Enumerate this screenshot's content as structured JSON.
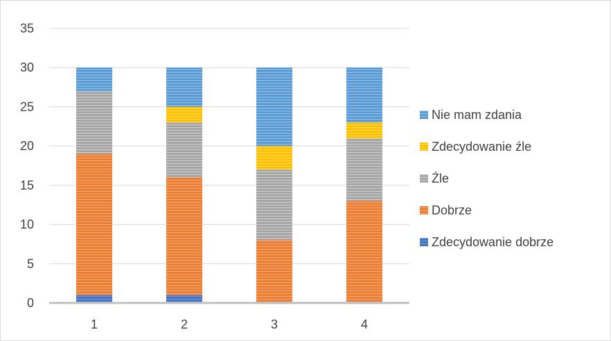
{
  "chart_data": {
    "type": "bar",
    "stacked": true,
    "categories": [
      "1",
      "2",
      "3",
      "4"
    ],
    "series": [
      {
        "name": "Zdecydowanie dobrze",
        "values": [
          1,
          1,
          0,
          0
        ],
        "color": "#4472c4"
      },
      {
        "name": "Dobrze",
        "values": [
          18,
          15,
          8,
          13
        ],
        "color": "#ed7d31"
      },
      {
        "name": "Źle",
        "values": [
          8,
          7,
          9,
          8
        ],
        "color": "#a5a5a5"
      },
      {
        "name": "Zdecydowanie źle",
        "values": [
          0,
          2,
          3,
          2
        ],
        "color": "#ffc000"
      },
      {
        "name": "Nie mam zdania",
        "values": [
          3,
          5,
          10,
          7
        ],
        "color": "#5b9bd5"
      }
    ],
    "ylim": [
      0,
      35
    ],
    "yticks": [
      0,
      5,
      10,
      15,
      20,
      25,
      30,
      35
    ],
    "grid": true,
    "legend": "right"
  }
}
